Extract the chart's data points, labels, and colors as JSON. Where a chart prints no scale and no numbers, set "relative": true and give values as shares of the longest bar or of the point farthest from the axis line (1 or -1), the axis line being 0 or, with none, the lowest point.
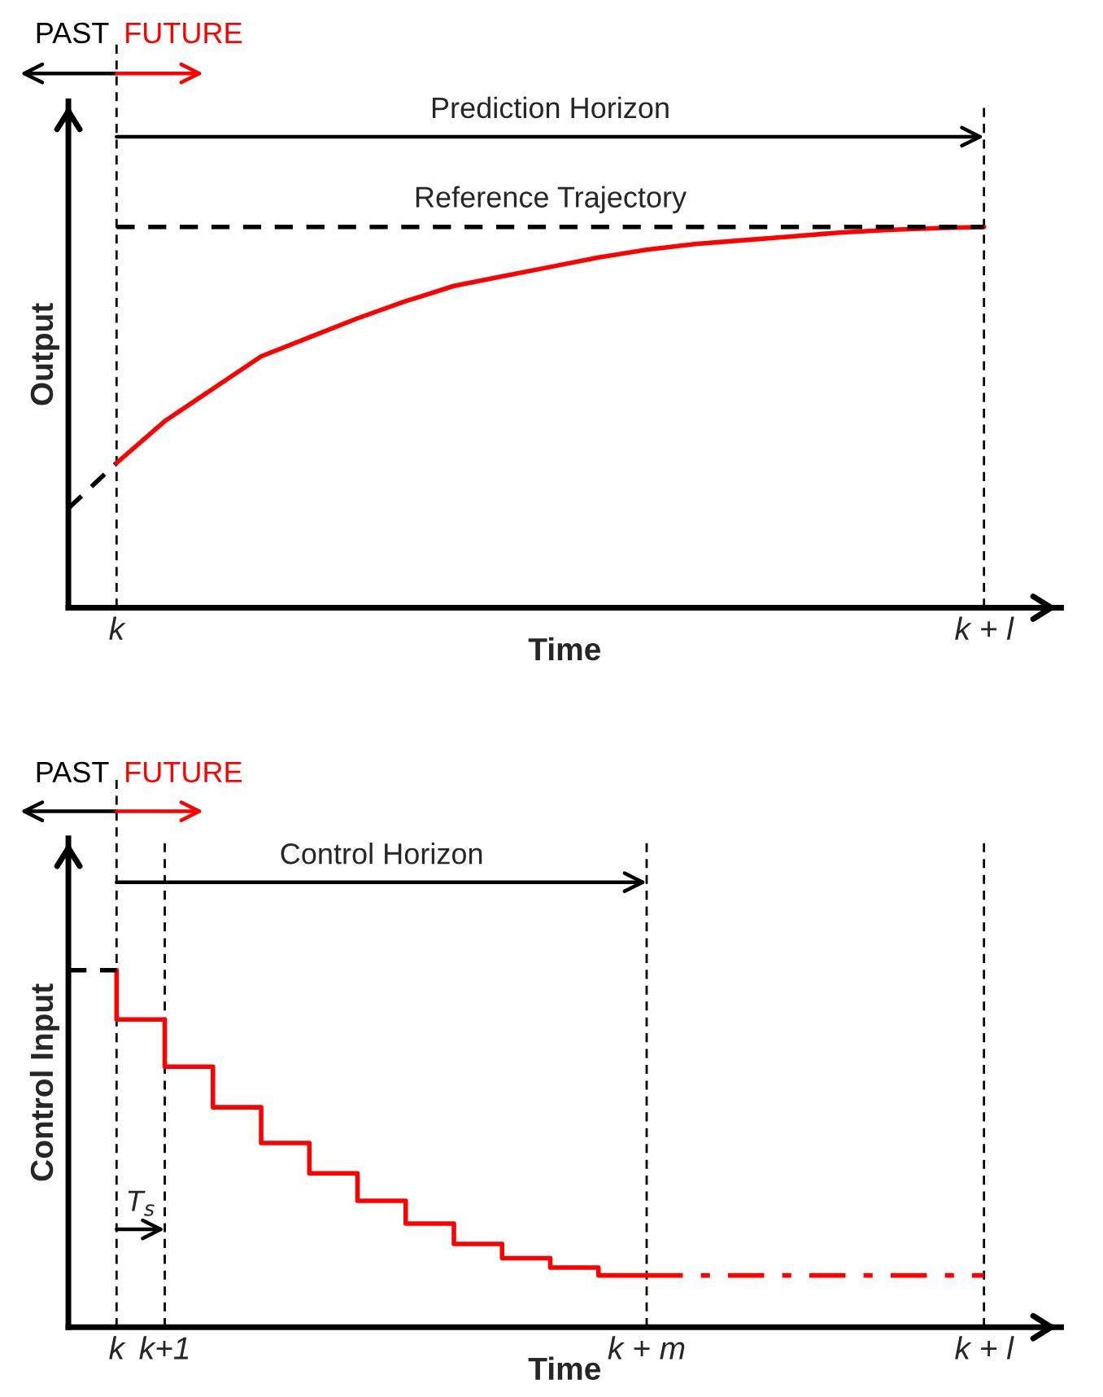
{
  "chart_data": [
    {
      "type": "line",
      "relative": true,
      "xlabel": "Time",
      "ylabel": "Output",
      "categories": [
        null,
        "k",
        null,
        null,
        null,
        null,
        null,
        null,
        null,
        null,
        null,
        null,
        null,
        null,
        null,
        null,
        null,
        null,
        null,
        "k + l"
      ],
      "series": [
        {
          "color": "#000000",
          "line_style": "dashed",
          "values": [
            0.261,
            0.38,
            null,
            null,
            null,
            null,
            null,
            null,
            null,
            null,
            null,
            null,
            null,
            null,
            null,
            null,
            null,
            null,
            null,
            null
          ]
        },
        {
          "color": "#ff0000",
          "values": [
            null,
            0.38,
            0.49,
            0.575,
            0.66,
            0.71,
            0.76,
            0.805,
            0.845,
            0.87,
            0.895,
            0.92,
            0.94,
            0.955,
            0.965,
            0.975,
            0.985,
            0.992,
            0.997,
            1
          ]
        },
        {
          "name": "Reference Trajectory",
          "color": "#000000",
          "line_style": "dashed",
          "values": [
            null,
            1,
            1,
            1,
            1,
            1,
            1,
            1,
            1,
            1,
            1,
            1,
            1,
            1,
            1,
            1,
            1,
            1,
            1,
            1
          ]
        }
      ],
      "ref_lines": [
        {
          "axis": "x",
          "value": "k",
          "line_style": "dashed",
          "color": "#000000"
        },
        {
          "axis": "x",
          "value": "k + l",
          "line_style": "dashed",
          "color": "#000000"
        }
      ],
      "annotations": [
        "PAST",
        "FUTURE",
        "Prediction Horizon"
      ]
    },
    {
      "type": "step",
      "relative": true,
      "xlabel": "Time",
      "ylabel": "Control Input",
      "categories": [
        null,
        "k",
        "k+1",
        null,
        null,
        null,
        null,
        null,
        null,
        null,
        null,
        null,
        "k + m",
        null,
        null,
        null,
        null,
        null,
        null,
        "k + l"
      ],
      "series": [
        {
          "type": "line",
          "color": "#000000",
          "line_style": "dashed",
          "values": [
            1,
            1,
            null,
            null,
            null,
            null,
            null,
            null,
            null,
            null,
            null,
            null,
            null,
            null,
            null,
            null,
            null,
            null,
            null,
            null
          ]
        },
        {
          "color": "#ff0000",
          "values": [
            null,
            1,
            0.862,
            0.73,
            0.616,
            0.516,
            0.431,
            0.354,
            0.29,
            0.233,
            0.193,
            0.167,
            0.145,
            null,
            null,
            null,
            null,
            null,
            null,
            null
          ]
        },
        {
          "type": "line",
          "color": "#ff0000",
          "line_style": "dashdot",
          "values": [
            null,
            null,
            null,
            null,
            null,
            null,
            null,
            null,
            null,
            null,
            null,
            null,
            0.145,
            0.145,
            0.145,
            0.145,
            0.145,
            0.145,
            0.145,
            0.145
          ]
        }
      ],
      "ref_lines": [
        {
          "axis": "x",
          "value": "k",
          "line_style": "dashed",
          "color": "#000000"
        },
        {
          "axis": "x",
          "value": "k+1",
          "line_style": "dashed",
          "color": "#000000"
        },
        {
          "axis": "x",
          "value": "k + m",
          "line_style": "dashed",
          "color": "#000000"
        },
        {
          "axis": "x",
          "value": "k + l",
          "line_style": "dashed",
          "color": "#000000"
        }
      ],
      "annotations": [
        "PAST",
        "FUTURE",
        "Control Horizon",
        "T$_{s}$"
      ]
    }
  ]
}
